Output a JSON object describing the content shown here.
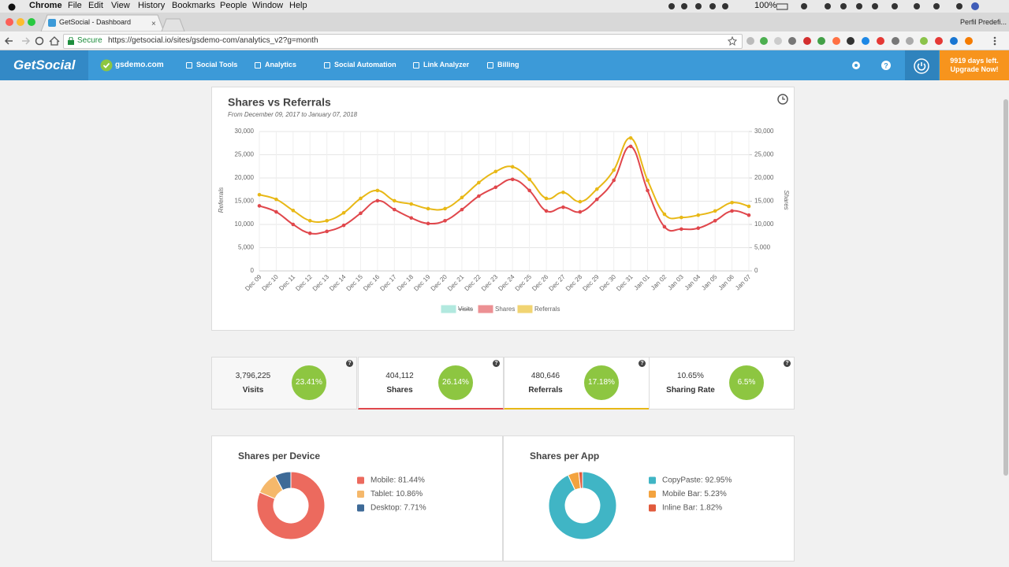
{
  "menu_bar": {
    "app": "Chrome",
    "items": [
      "File",
      "Edit",
      "View",
      "History",
      "Bookmarks",
      "People",
      "Window",
      "Help"
    ],
    "battery": "100%"
  },
  "browser": {
    "tab": "GetSocial - Dashboard",
    "profile": "Perfil Predefi...",
    "secure": "Secure",
    "url": "https://getsocial.io/sites/gsdemo-com/analytics_v2?g=month"
  },
  "nav": {
    "logo": "GetSocial",
    "site": "gsdemo.com",
    "items": [
      "Social Tools",
      "Analytics",
      "Social Automation",
      "Link Analyzer",
      "Billing"
    ],
    "trial": [
      "9919 days left.",
      "Upgrade Now!"
    ]
  },
  "chart_data": [
    {
      "type": "line",
      "title": "Shares vs Referrals",
      "subtitle": "From December 09, 2017 to January 07, 2018",
      "y_label": "Referrals",
      "y2_label": "Shares",
      "grid": true,
      "categories": [
        "Dec 09",
        "Dec 10",
        "Dec 11",
        "Dec 12",
        "Dec 13",
        "Dec 14",
        "Dec 15",
        "Dec 16",
        "Dec 17",
        "Dec 18",
        "Dec 19",
        "Dec 20",
        "Dec 21",
        "Dec 22",
        "Dec 23",
        "Dec 24",
        "Dec 25",
        "Dec 26",
        "Dec 27",
        "Dec 28",
        "Dec 29",
        "Dec 30",
        "Dec 31",
        "Jan 01",
        "Jan 02",
        "Jan 03",
        "Jan 04",
        "Jan 05",
        "Jan 06",
        "Jan 07"
      ],
      "series": [
        {
          "name": "Visits",
          "color": "#7fdccb",
          "hidden": true,
          "values": [
            null,
            null,
            null,
            null,
            null,
            null,
            null,
            null,
            null,
            null,
            null,
            null,
            null,
            null,
            null,
            null,
            null,
            null,
            null,
            null,
            null,
            null,
            null,
            null,
            null,
            null,
            null,
            null,
            null,
            null
          ]
        },
        {
          "name": "Shares",
          "color": "#e0474c",
          "axis": "y2",
          "values": [
            14000,
            12700,
            10000,
            8100,
            8500,
            9800,
            12400,
            15100,
            13200,
            11400,
            10200,
            10800,
            13200,
            16100,
            18000,
            19700,
            17300,
            12900,
            13700,
            12700,
            15400,
            19500,
            26800,
            17300,
            9500,
            9000,
            9200,
            10800,
            12900,
            12000
          ]
        },
        {
          "name": "Referrals",
          "color": "#e8b816",
          "values": [
            16400,
            15400,
            13000,
            10800,
            10800,
            12500,
            15600,
            17300,
            15100,
            14400,
            13400,
            13400,
            15800,
            19000,
            21400,
            22400,
            19700,
            15600,
            16900,
            14900,
            17600,
            21700,
            28600,
            19500,
            12200,
            11500,
            12000,
            12900,
            14700,
            13900
          ]
        }
      ],
      "ylim": [
        0,
        30000
      ],
      "yticks": [
        0,
        {
          "value": 5000,
          "label": "5,000"
        },
        {
          "value": 10000,
          "label": "10,000"
        },
        {
          "value": 15000,
          "label": "15,000"
        },
        {
          "value": 20000,
          "label": "20,000"
        },
        {
          "value": 25000,
          "label": "25,000"
        },
        {
          "value": 30000,
          "label": "30,000"
        }
      ],
      "y2lim": [
        0,
        30000
      ],
      "y2ticks": [
        0,
        {
          "value": 5000,
          "label": "5,000"
        },
        {
          "value": 10000,
          "label": "10,000"
        },
        {
          "value": 15000,
          "label": "15,000"
        },
        {
          "value": 20000,
          "label": "20,000"
        },
        {
          "value": 25000,
          "label": "25,000"
        },
        {
          "value": 30000,
          "label": "30,000"
        }
      ]
    },
    {
      "type": "pie",
      "title": "Shares per Device",
      "values": [
        81.44,
        10.86,
        7.71
      ],
      "value_labels": [
        "Mobile: 81.44%",
        "Tablet: 10.86%",
        "Desktop: 7.71%"
      ],
      "colors": [
        "#ec6a5e",
        "#f5b86b",
        "#3e6a97"
      ]
    },
    {
      "type": "pie",
      "title": "Shares per App",
      "values": [
        92.95,
        5.23,
        1.82
      ],
      "value_labels": [
        "CopyPaste: 92.95%",
        "Mobile Bar: 5.23%",
        "Inline Bar: 1.82%"
      ],
      "colors": [
        "#40b5c5",
        "#f3a33f",
        "#e15a3c"
      ]
    }
  ],
  "stats": [
    {
      "value": "3,796,225",
      "label": "Visits",
      "badge": "23.41%"
    },
    {
      "value": "404,112",
      "label": "Shares",
      "badge": "26.14%"
    },
    {
      "value": "480,646",
      "label": "Referrals",
      "badge": "17.18%"
    },
    {
      "value": "10.65%",
      "label": "Sharing Rate",
      "badge": "6.5%"
    }
  ]
}
